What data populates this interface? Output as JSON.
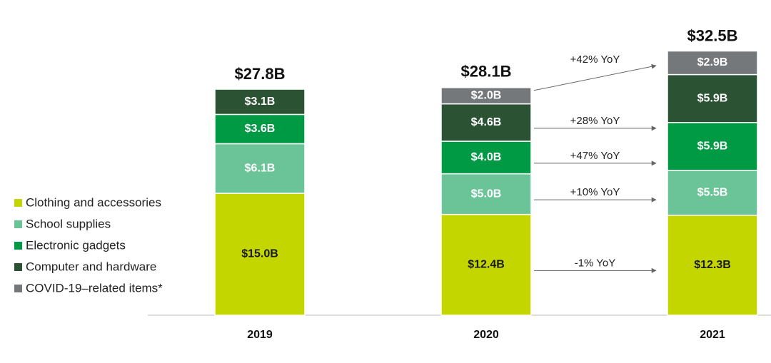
{
  "chart_data": {
    "type": "stacked_bar",
    "categories": [
      "2019",
      "2020",
      "2021"
    ],
    "series": [
      {
        "name": "Clothing and accessories",
        "color": "#c4d600",
        "label_color": "#1a1a1a",
        "values": [
          15.0,
          12.4,
          12.3
        ],
        "value_labels": [
          "$15.0B",
          "$12.4B",
          "$12.3B"
        ],
        "yoy_label": "-1% YoY"
      },
      {
        "name": "School supplies",
        "color": "#6bc498",
        "label_color": "#ffffff",
        "values": [
          6.1,
          5.0,
          5.5
        ],
        "value_labels": [
          "$6.1B",
          "$5.0B",
          "$5.5B"
        ],
        "yoy_label": "+10% YoY"
      },
      {
        "name": "Electronic gadgets",
        "color": "#009a44",
        "label_color": "#ffffff",
        "values": [
          3.6,
          4.0,
          5.9
        ],
        "value_labels": [
          "$3.6B",
          "$4.0B",
          "$5.9B"
        ],
        "yoy_label": "+47% YoY"
      },
      {
        "name": "Computer and hardware",
        "color": "#2c5234",
        "label_color": "#ffffff",
        "values": [
          3.1,
          4.6,
          5.9
        ],
        "value_labels": [
          "$3.1B",
          "$4.6B",
          "$5.9B"
        ],
        "yoy_label": "+28% YoY"
      },
      {
        "name": "COVID-19–related items*",
        "color": "#75787b",
        "label_color": "#ffffff",
        "values": [
          null,
          2.0,
          2.9
        ],
        "value_labels": [
          null,
          "$2.0B",
          "$2.9B"
        ],
        "yoy_label": "+42% YoY"
      }
    ],
    "totals": {
      "values": [
        27.8,
        28.1,
        32.5
      ],
      "value_labels": [
        "$27.8B",
        "$28.1B",
        "$32.5B"
      ]
    }
  }
}
